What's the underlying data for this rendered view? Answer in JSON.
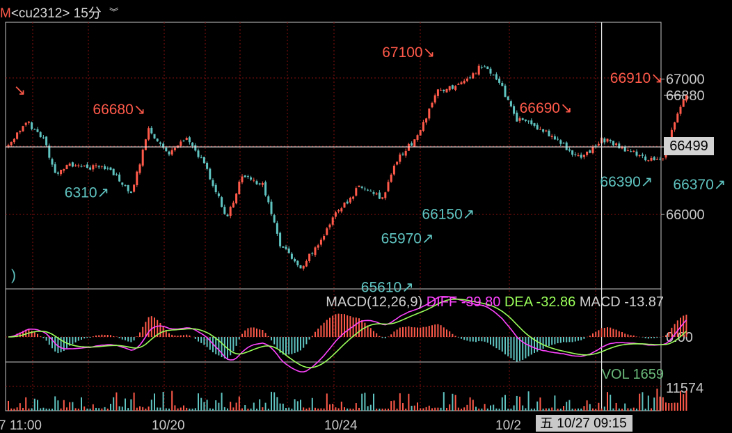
{
  "header": {
    "prefix": "M",
    "symbol": "<cu2312>",
    "period": "15分",
    "menu_icon": "double-chevron-down-icon"
  },
  "colors": {
    "up": "#ff5a4a",
    "down": "#5fc3c0",
    "diff": "#ff44ff",
    "dea": "#9aff5a",
    "vol_label": "#6ab97a",
    "grid": "#8a1010",
    "axis": "#c8c8c8"
  },
  "chart_data": [
    {
      "type": "candlestick",
      "title": "cu2312 15分",
      "ylim": [
        65450,
        67420
      ],
      "y_ticks": [
        66000,
        67000
      ],
      "y_labels": [
        "66000",
        "67000"
      ],
      "last_price_label": "66880",
      "last_price": 66880,
      "crosshair_price_label": "66499",
      "crosshair_price": 66499,
      "x_labels": [
        "7 11:00",
        "10/20",
        "10/24",
        "10/2"
      ],
      "cursor_time": "五 10/27 09:15",
      "annotations": [
        {
          "text": "↘",
          "price": 66820,
          "color": "up",
          "anchor": "right"
        },
        {
          "text": "66680↘",
          "price": 66680,
          "color": "up",
          "anchor": "right"
        },
        {
          "text": "6310↗",
          "price": 66260,
          "color": "down",
          "anchor": "left"
        },
        {
          "text": "66150↗",
          "price": 66100,
          "color": "down",
          "anchor": "left"
        },
        {
          "text": "65970↗",
          "price": 65920,
          "color": "down",
          "anchor": "left"
        },
        {
          "text": "65610↗",
          "price": 65560,
          "color": "down",
          "anchor": "left"
        },
        {
          "text": "67100↘",
          "price": 67100,
          "color": "up",
          "anchor": "right"
        },
        {
          "text": "66690↘",
          "price": 66690,
          "color": "up",
          "anchor": "right"
        },
        {
          "text": "66370↗",
          "price": 66320,
          "color": "down",
          "anchor": "left"
        },
        {
          "text": "66390↗",
          "price": 66340,
          "color": "down",
          "anchor": "left"
        },
        {
          "text": "66910↘",
          "price": 66910,
          "color": "up",
          "anchor": "right"
        },
        {
          "text": ")",
          "price": 65650,
          "color": "down",
          "anchor": "left"
        }
      ],
      "anchors": [
        [
          0,
          66500
        ],
        [
          6,
          66690
        ],
        [
          12,
          66560
        ],
        [
          16,
          66300
        ],
        [
          22,
          66370
        ],
        [
          35,
          66330
        ],
        [
          42,
          66150
        ],
        [
          48,
          66620
        ],
        [
          55,
          66450
        ],
        [
          61,
          66560
        ],
        [
          67,
          66380
        ],
        [
          75,
          65970
        ],
        [
          80,
          66300
        ],
        [
          87,
          66220
        ],
        [
          93,
          65780
        ],
        [
          100,
          65610
        ],
        [
          106,
          65770
        ],
        [
          112,
          66000
        ],
        [
          120,
          66200
        ],
        [
          128,
          66120
        ],
        [
          133,
          66400
        ],
        [
          140,
          66580
        ],
        [
          147,
          66920
        ],
        [
          155,
          66960
        ],
        [
          162,
          67100
        ],
        [
          168,
          66980
        ],
        [
          174,
          66700
        ],
        [
          182,
          66640
        ],
        [
          190,
          66510
        ],
        [
          196,
          66400
        ],
        [
          203,
          66560
        ],
        [
          210,
          66490
        ],
        [
          218,
          66420
        ],
        [
          224,
          66400
        ],
        [
          229,
          66750
        ],
        [
          232,
          66880
        ]
      ]
    },
    {
      "type": "line",
      "title": "MACD(12,26,9)",
      "series": [
        {
          "name": "DIFF",
          "label": "DIFF -39.80",
          "last": -39.8
        },
        {
          "name": "DEA",
          "label": "DEA -32.86",
          "last": -32.86
        },
        {
          "name": "MACD",
          "label": "MACD -13.87",
          "last": -13.87
        }
      ],
      "y_labels": [
        "0.00"
      ]
    },
    {
      "type": "bar",
      "title": "VOL",
      "series": [
        {
          "name": "VOL",
          "label": "VOL 1659",
          "last": 1659
        }
      ],
      "y_labels": [
        "11574"
      ]
    }
  ]
}
